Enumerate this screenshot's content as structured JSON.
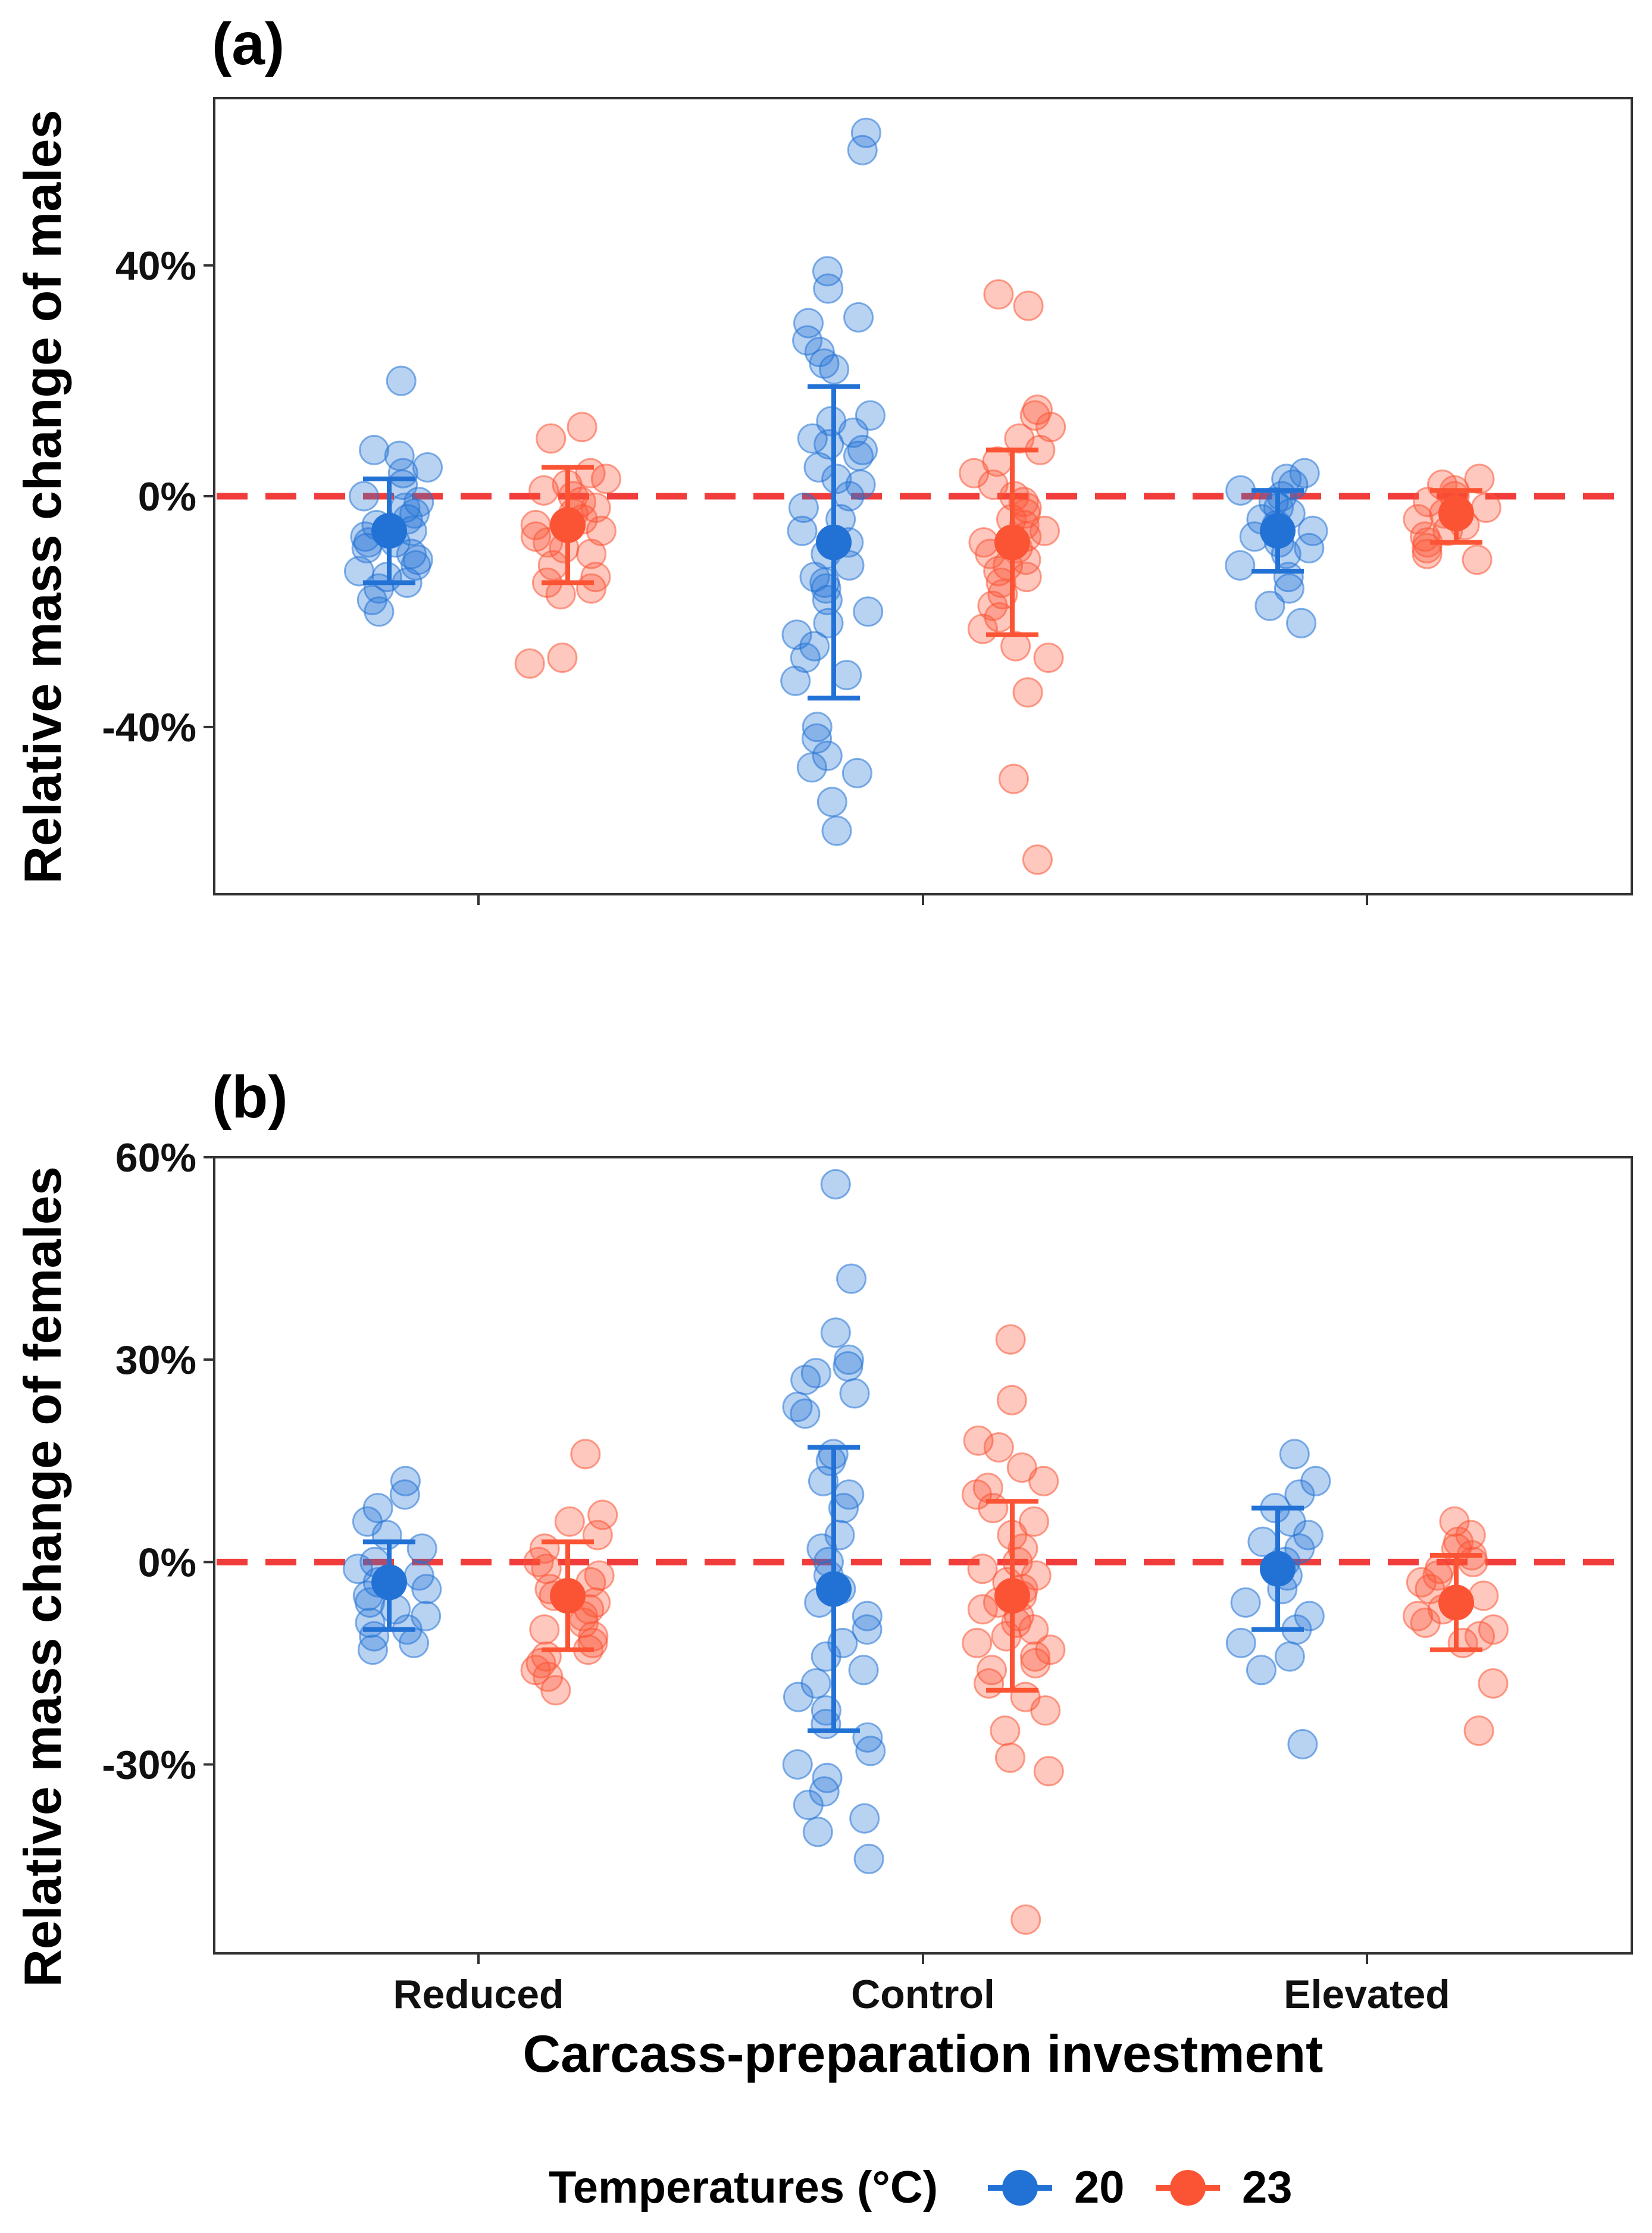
{
  "chart_data": {
    "type": "scatter",
    "xlabel": "Carcass-preparation investment",
    "categories": [
      "Reduced",
      "Control",
      "Elevated"
    ],
    "legend": {
      "title": "Temperatures (°C)",
      "placement": "bottom",
      "entries": [
        {
          "name": "20",
          "color": "#2272d6"
        },
        {
          "name": "23",
          "color": "#fb5434"
        }
      ]
    },
    "reference_line": {
      "y": 0,
      "color": "#f13c3c",
      "style": "dashed"
    },
    "panels": [
      {
        "label": "(a)",
        "ylabel": "Relative mass change of males",
        "ylim": [
          -69,
          69
        ],
        "yticks": [
          -40,
          0,
          40
        ],
        "yticklabels": [
          "-40%",
          "0%",
          "40%"
        ],
        "series": [
          {
            "name": "20",
            "summary": [
              {
                "category": "Reduced",
                "mean": -6,
                "lower": -15,
                "upper": 3
              },
              {
                "category": "Control",
                "mean": -8,
                "lower": -35,
                "upper": 19
              },
              {
                "category": "Elevated",
                "mean": -6,
                "lower": -13,
                "upper": 1
              }
            ],
            "points": [
              {
                "category": "Reduced",
                "values": [
                  20,
                  8,
                  7,
                  5,
                  4,
                  2,
                  0,
                  -1,
                  -2,
                  -3,
                  -4,
                  -5,
                  -6,
                  -7,
                  -8,
                  -8,
                  -9,
                  -10,
                  -11,
                  -12,
                  -13,
                  -14,
                  -15,
                  -16,
                  -18,
                  -20
                ]
              },
              {
                "category": "Control",
                "values": [
                  63,
                  60,
                  39,
                  36,
                  31,
                  30,
                  27,
                  25,
                  23,
                  22,
                  14,
                  13,
                  11,
                  10,
                  9,
                  8,
                  7,
                  5,
                  3,
                  2,
                  0,
                  -2,
                  -4,
                  -6,
                  -8,
                  -10,
                  -12,
                  -14,
                  -15,
                  -16,
                  -18,
                  -20,
                  -22,
                  -24,
                  -26,
                  -28,
                  -31,
                  -32,
                  -40,
                  -42,
                  -45,
                  -47,
                  -48,
                  -53,
                  -58
                ]
              },
              {
                "category": "Elevated",
                "values": [
                  4,
                  3,
                  2,
                  1,
                  0,
                  -1,
                  -2,
                  -3,
                  -4,
                  -5,
                  -6,
                  -7,
                  -8,
                  -9,
                  -10,
                  -12,
                  -14,
                  -16,
                  -19,
                  -22
                ]
              }
            ]
          },
          {
            "name": "23",
            "summary": [
              {
                "category": "Reduced",
                "mean": -5,
                "lower": -15,
                "upper": 5
              },
              {
                "category": "Control",
                "mean": -8,
                "lower": -24,
                "upper": 8
              },
              {
                "category": "Elevated",
                "mean": -3,
                "lower": -8,
                "upper": 1
              }
            ],
            "points": [
              {
                "category": "Reduced",
                "values": [
                  12,
                  10,
                  4,
                  3,
                  2,
                  1,
                  0,
                  -1,
                  -2,
                  -3,
                  -4,
                  -5,
                  -6,
                  -7,
                  -8,
                  -9,
                  -10,
                  -12,
                  -14,
                  -15,
                  -16,
                  -17,
                  -28,
                  -29
                ]
              },
              {
                "category": "Control",
                "values": [
                  35,
                  33,
                  15,
                  14,
                  12,
                  10,
                  8,
                  6,
                  4,
                  2,
                  0,
                  -1,
                  -2,
                  -3,
                  -4,
                  -5,
                  -6,
                  -7,
                  -8,
                  -9,
                  -10,
                  -11,
                  -12,
                  -13,
                  -14,
                  -15,
                  -17,
                  -19,
                  -21,
                  -23,
                  -26,
                  -28,
                  -34,
                  -49,
                  -63
                ]
              },
              {
                "category": "Elevated",
                "values": [
                  3,
                  2,
                  1,
                  0,
                  -1,
                  -2,
                  -3,
                  -4,
                  -5,
                  -6,
                  -7,
                  -8,
                  -9,
                  -10,
                  -11
                ]
              }
            ]
          }
        ]
      },
      {
        "label": "(b)",
        "ylabel": "Relative mass change of females",
        "ylim": [
          -58,
          60
        ],
        "yticks": [
          -30,
          0,
          30,
          60
        ],
        "yticklabels": [
          "-30%",
          "0%",
          "30%",
          "60%"
        ],
        "series": [
          {
            "name": "20",
            "summary": [
              {
                "category": "Reduced",
                "mean": -3,
                "lower": -10,
                "upper": 3
              },
              {
                "category": "Control",
                "mean": -4,
                "lower": -25,
                "upper": 17
              },
              {
                "category": "Elevated",
                "mean": -1,
                "lower": -10,
                "upper": 8
              }
            ],
            "points": [
              {
                "category": "Reduced",
                "values": [
                  12,
                  10,
                  8,
                  6,
                  4,
                  2,
                  0,
                  -1,
                  -2,
                  -3,
                  -4,
                  -5,
                  -6,
                  -7,
                  -8,
                  -9,
                  -10,
                  -11,
                  -12,
                  -13
                ]
              },
              {
                "category": "Control",
                "values": [
                  56,
                  42,
                  34,
                  30,
                  29,
                  28,
                  27,
                  25,
                  23,
                  22,
                  16,
                  15,
                  12,
                  10,
                  8,
                  4,
                  2,
                  0,
                  -2,
                  -4,
                  -6,
                  -8,
                  -10,
                  -12,
                  -14,
                  -16,
                  -18,
                  -20,
                  -22,
                  -24,
                  -26,
                  -28,
                  -30,
                  -32,
                  -34,
                  -36,
                  -38,
                  -40,
                  -44
                ]
              },
              {
                "category": "Elevated",
                "values": [
                  16,
                  12,
                  10,
                  8,
                  6,
                  4,
                  3,
                  2,
                  0,
                  -2,
                  -4,
                  -6,
                  -8,
                  -10,
                  -12,
                  -14,
                  -16,
                  -27
                ]
              }
            ]
          },
          {
            "name": "23",
            "summary": [
              {
                "category": "Reduced",
                "mean": -5,
                "lower": -13,
                "upper": 3
              },
              {
                "category": "Control",
                "mean": -5,
                "lower": -19,
                "upper": 9
              },
              {
                "category": "Elevated",
                "mean": -6,
                "lower": -13,
                "upper": 1
              }
            ],
            "points": [
              {
                "category": "Reduced",
                "values": [
                  16,
                  7,
                  6,
                  4,
                  2,
                  0,
                  -1,
                  -2,
                  -3,
                  -4,
                  -5,
                  -6,
                  -7,
                  -8,
                  -9,
                  -10,
                  -11,
                  -12,
                  -13,
                  -14,
                  -15,
                  -16,
                  -17,
                  -19
                ]
              },
              {
                "category": "Control",
                "values": [
                  33,
                  24,
                  18,
                  17,
                  14,
                  12,
                  11,
                  10,
                  8,
                  6,
                  4,
                  2,
                  0,
                  -1,
                  -2,
                  -3,
                  -4,
                  -5,
                  -6,
                  -7,
                  -8,
                  -9,
                  -10,
                  -11,
                  -12,
                  -13,
                  -14,
                  -15,
                  -16,
                  -18,
                  -20,
                  -22,
                  -25,
                  -29,
                  -31,
                  -53
                ]
              },
              {
                "category": "Elevated",
                "values": [
                  6,
                  4,
                  3,
                  2,
                  1,
                  0,
                  -1,
                  -2,
                  -3,
                  -4,
                  -5,
                  -6,
                  -7,
                  -8,
                  -9,
                  -10,
                  -11,
                  -12,
                  -18,
                  -25
                ]
              }
            ]
          }
        ]
      }
    ]
  }
}
